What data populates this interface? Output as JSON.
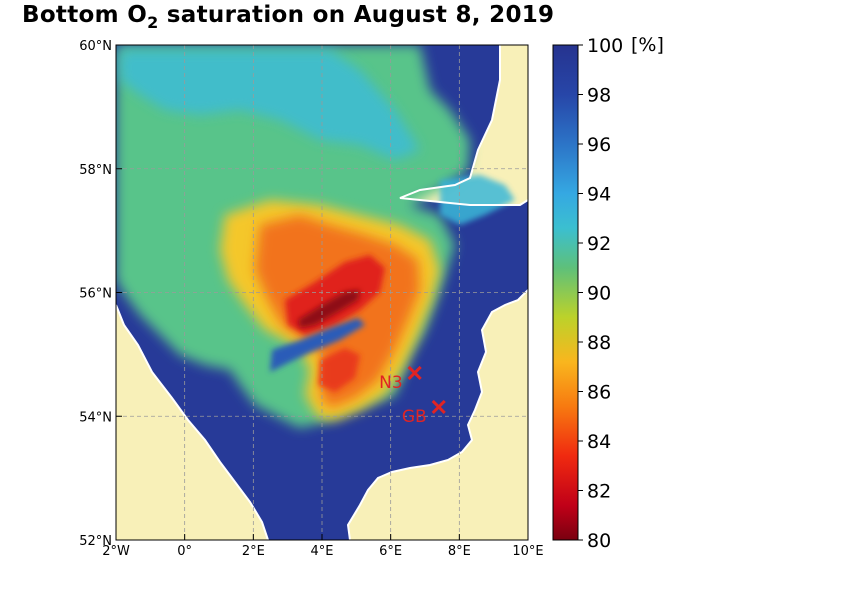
{
  "title": {
    "prefix": "Bottom O",
    "subscript": "2",
    "suffix": " saturation on August 8, 2019"
  },
  "colors": {
    "land": "#f8f0b8",
    "coastline": "#ffffff",
    "station": "#e02424",
    "grid": "#9a9a9a"
  },
  "map": {
    "lon_range": [
      -2,
      10
    ],
    "lat_range": [
      52,
      60
    ],
    "x_ticks": [
      {
        "value": -2,
        "label": "2°W"
      },
      {
        "value": 0,
        "label": "0°"
      },
      {
        "value": 2,
        "label": "2°E"
      },
      {
        "value": 4,
        "label": "4°E"
      },
      {
        "value": 6,
        "label": "6°E"
      },
      {
        "value": 8,
        "label": "8°E"
      },
      {
        "value": 10,
        "label": "10°E"
      }
    ],
    "y_ticks": [
      {
        "value": 60,
        "label": "60°N"
      },
      {
        "value": 58,
        "label": "58°N"
      },
      {
        "value": 56,
        "label": "56°N"
      },
      {
        "value": 54,
        "label": "54°N"
      },
      {
        "value": 52,
        "label": "52°N"
      }
    ],
    "grid": true,
    "stations": [
      {
        "name": "N3",
        "lon": 6.7,
        "lat": 54.7
      },
      {
        "name": "GB",
        "lon": 7.4,
        "lat": 54.15
      }
    ]
  },
  "colorbar": {
    "min": 80,
    "max": 100,
    "unit": "[%]",
    "ticks": [
      {
        "value": 100,
        "label": "100"
      },
      {
        "value": 98,
        "label": "98"
      },
      {
        "value": 96,
        "label": "96"
      },
      {
        "value": 94,
        "label": "94"
      },
      {
        "value": 92,
        "label": "92"
      },
      {
        "value": 90,
        "label": "90"
      },
      {
        "value": 88,
        "label": "88"
      },
      {
        "value": 86,
        "label": "86"
      },
      {
        "value": 84,
        "label": "84"
      },
      {
        "value": 82,
        "label": "82"
      },
      {
        "value": 80,
        "label": "80"
      }
    ]
  }
}
